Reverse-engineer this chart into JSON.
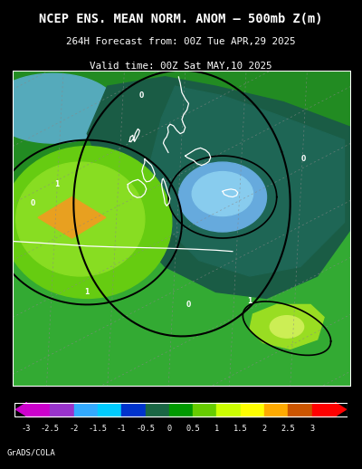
{
  "title_line1": "NCEP ENS. MEAN NORM. ANOM – 500mb Z(m)",
  "title_line2": "264H Forecast from: 00Z Tue APR,29 2025",
  "title_line3": "Valid time: 00Z Sat MAY,10 2025",
  "colorbar_colors": [
    "#cc00cc",
    "#9933cc",
    "#33aaff",
    "#00ccff",
    "#0033cc",
    "#1a6644",
    "#009900",
    "#66cc00",
    "#ccff00",
    "#ffff00",
    "#ffaa00",
    "#cc5500",
    "#ff0000"
  ],
  "colorbar_labels": [
    "-3",
    "-2.5",
    "-2",
    "-1.5",
    "-1",
    "-0.5",
    "0",
    "0.5",
    "1",
    "1.5",
    "2",
    "2.5",
    "3"
  ],
  "bg_color": "#000000",
  "map_border_color": "#ffffff",
  "title_color": "#ffffff",
  "credit_text": "GrADS/COLA",
  "map_green_bg": "#228b22",
  "map_medgreen": "#2d9e2d",
  "map_darkgreen": "#1a5c3a",
  "map_teal": "#1a5050",
  "map_limegreen": "#7acc00",
  "map_lightyellow_green": "#a8d400",
  "map_orange": "#e8a020",
  "map_blue_light": "#66aadd",
  "map_blue_mid": "#4488bb",
  "map_blue_teal": "#1a6677",
  "map_bright_green": "#33bb33"
}
